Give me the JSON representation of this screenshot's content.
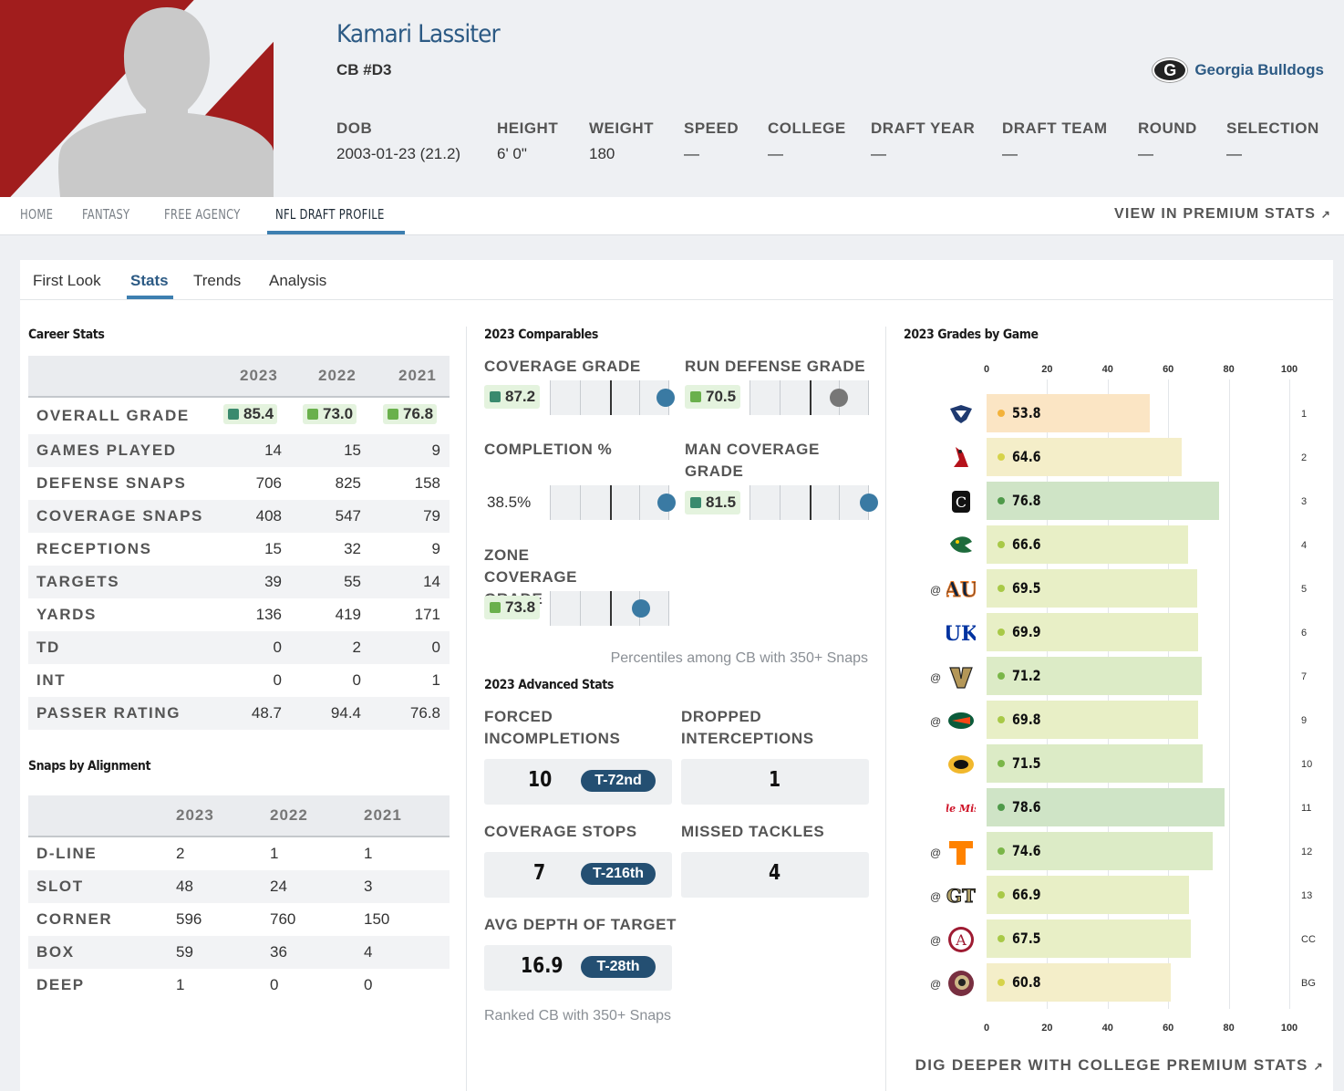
{
  "player": {
    "name": "Kamari Lassiter",
    "position": "CB #D3",
    "team": "Georgia Bulldogs",
    "team_logo": "G",
    "bio": [
      {
        "label": "DOB",
        "value": "2003-01-23 (21.2)"
      },
      {
        "label": "HEIGHT",
        "value": "6' 0\""
      },
      {
        "label": "WEIGHT",
        "value": "180"
      },
      {
        "label": "SPEED",
        "value": "—"
      },
      {
        "label": "COLLEGE",
        "value": "—"
      },
      {
        "label": "DRAFT YEAR",
        "value": "—"
      },
      {
        "label": "DRAFT TEAM",
        "value": "—"
      },
      {
        "label": "ROUND",
        "value": "—"
      },
      {
        "label": "SELECTION",
        "value": "—"
      }
    ]
  },
  "nav": {
    "items": [
      "HOME",
      "FANTASY",
      "FREE AGENCY",
      "NFL DRAFT PROFILE"
    ],
    "active": "NFL DRAFT PROFILE",
    "premium_label": "VIEW IN PREMIUM STATS"
  },
  "tabs": {
    "items": [
      "First Look",
      "Stats",
      "Trends",
      "Analysis"
    ],
    "active": "Stats"
  },
  "colors": {
    "grade_high": "#3a8a6e",
    "grade_mid": "#6ab04c",
    "accent": "#3d7fb0",
    "dark_blue": "#244f72"
  },
  "career_stats": {
    "title": "Career Stats",
    "years": [
      "2023",
      "2022",
      "2021"
    ],
    "overall_grade": {
      "label": "OVERALL GRADE",
      "values": [
        "85.4",
        "73.0",
        "76.8"
      ]
    },
    "rows": [
      {
        "label": "GAMES PLAYED",
        "values": [
          "14",
          "15",
          "9"
        ]
      },
      {
        "label": "DEFENSE SNAPS",
        "values": [
          "706",
          "825",
          "158"
        ]
      },
      {
        "label": "COVERAGE SNAPS",
        "values": [
          "408",
          "547",
          "79"
        ]
      },
      {
        "label": "RECEPTIONS",
        "values": [
          "15",
          "32",
          "9"
        ]
      },
      {
        "label": "TARGETS",
        "values": [
          "39",
          "55",
          "14"
        ]
      },
      {
        "label": "YARDS",
        "values": [
          "136",
          "419",
          "171"
        ]
      },
      {
        "label": "TD",
        "values": [
          "0",
          "2",
          "0"
        ]
      },
      {
        "label": "INT",
        "values": [
          "0",
          "0",
          "1"
        ]
      },
      {
        "label": "PASSER RATING",
        "values": [
          "48.7",
          "94.4",
          "76.8"
        ]
      }
    ]
  },
  "snaps_alignment": {
    "title": "Snaps by Alignment",
    "years": [
      "2023",
      "2022",
      "2021"
    ],
    "rows": [
      {
        "label": "D-LINE",
        "values": [
          "2",
          "1",
          "1"
        ]
      },
      {
        "label": "SLOT",
        "values": [
          "48",
          "24",
          "3"
        ]
      },
      {
        "label": "CORNER",
        "values": [
          "596",
          "760",
          "150"
        ]
      },
      {
        "label": "BOX",
        "values": [
          "59",
          "36",
          "4"
        ]
      },
      {
        "label": "DEEP",
        "values": [
          "1",
          "0",
          "0"
        ]
      }
    ]
  },
  "comparables": {
    "title": "2023 Comparables",
    "items": [
      {
        "label": "COVERAGE GRADE",
        "value": "87.2",
        "percentile": 0.97,
        "dot_color": "#3a7aa3",
        "badge_color": "#3a8a6e"
      },
      {
        "label": "RUN DEFENSE GRADE",
        "value": "70.5",
        "percentile": 0.75,
        "dot_color": "#777777",
        "badge_color": "#6ab04c"
      },
      {
        "label": "COMPLETION %",
        "value": "38.5%",
        "percentile": 0.98,
        "dot_color": "#3a7aa3",
        "badge_color": null
      },
      {
        "label": "MAN COVERAGE GRADE",
        "value": "81.5",
        "percentile": 1.0,
        "dot_color": "#3a7aa3",
        "badge_color": "#3a8a6e"
      },
      {
        "label": "ZONE COVERAGE GRADE",
        "value": "73.8",
        "percentile": 0.76,
        "dot_color": "#3a7aa3",
        "badge_color": "#6ab04c"
      }
    ],
    "note": "Percentiles among CB with 350+ Snaps"
  },
  "advanced": {
    "title": "2023 Advanced Stats",
    "items": [
      {
        "label": "FORCED INCOMPLETIONS",
        "value": "10",
        "rank": "T-72nd"
      },
      {
        "label": "DROPPED INTERCEPTIONS",
        "value": "1",
        "rank": null
      },
      {
        "label": "COVERAGE STOPS",
        "value": "7",
        "rank": "T-216th"
      },
      {
        "label": "MISSED TACKLES",
        "value": "4",
        "rank": null
      },
      {
        "label": "AVG DEPTH OF TARGET",
        "value": "16.9",
        "rank": "T-28th"
      }
    ],
    "note": "Ranked CB with 350+ Snaps"
  },
  "chart_data": {
    "type": "bar",
    "title": "2023 Grades by Game",
    "orientation": "horizontal",
    "xlim": [
      0,
      100
    ],
    "x_ticks": [
      "0",
      "20",
      "40",
      "60",
      "80",
      "100"
    ],
    "games": [
      {
        "away": "",
        "opponent_icon": "ut-martin-icon",
        "grade": 53.8,
        "week": "1"
      },
      {
        "away": "",
        "opponent_icon": "ball-state-icon",
        "grade": 64.6,
        "week": "2"
      },
      {
        "away": "",
        "opponent_icon": "south-carolina-icon",
        "grade": 76.8,
        "week": "3"
      },
      {
        "away": "",
        "opponent_icon": "uab-icon",
        "grade": 66.6,
        "week": "4"
      },
      {
        "away": "@",
        "opponent_icon": "auburn-icon",
        "grade": 69.5,
        "week": "5"
      },
      {
        "away": "",
        "opponent_icon": "kentucky-icon",
        "grade": 69.9,
        "week": "6"
      },
      {
        "away": "@",
        "opponent_icon": "vanderbilt-icon",
        "grade": 71.2,
        "week": "7"
      },
      {
        "away": "@",
        "opponent_icon": "florida-icon",
        "grade": 69.8,
        "week": "9"
      },
      {
        "away": "",
        "opponent_icon": "missouri-icon",
        "grade": 71.5,
        "week": "10"
      },
      {
        "away": "",
        "opponent_icon": "ole-miss-icon",
        "grade": 78.6,
        "week": "11"
      },
      {
        "away": "@",
        "opponent_icon": "tennessee-icon",
        "grade": 74.6,
        "week": "12"
      },
      {
        "away": "@",
        "opponent_icon": "georgia-tech-icon",
        "grade": 66.9,
        "week": "13"
      },
      {
        "away": "@",
        "opponent_icon": "alabama-icon",
        "grade": 67.5,
        "week": "CC"
      },
      {
        "away": "@",
        "opponent_icon": "florida-state-icon",
        "grade": 60.8,
        "week": "BG"
      }
    ]
  },
  "footer": {
    "dig_deeper": "DIG DEEPER WITH COLLEGE PREMIUM STATS"
  }
}
